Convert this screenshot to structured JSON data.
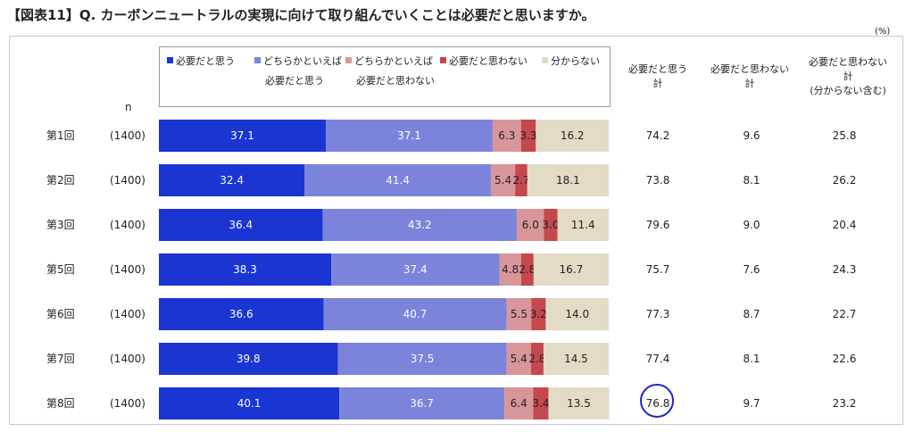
{
  "title": "【図表11】Q. カーボンニュートラルの実現に向けて取り組んでいくことは必要だと思いますか。",
  "unit": "(%)",
  "n_label": "n",
  "legend": [
    {
      "label1": "必要だと思う",
      "label2": "",
      "color": "#1a35d2"
    },
    {
      "label1": "どちらかといえば",
      "label2": "必要だと思う",
      "color": "#7b83da"
    },
    {
      "label1": "どちらかといえば",
      "label2": "必要だと思わない",
      "color": "#d9969a"
    },
    {
      "label1": "必要だと思わない",
      "label2": "",
      "color": "#c4484c"
    },
    {
      "label1": "分からない",
      "label2": "",
      "color": "#e2dcc7"
    }
  ],
  "columns": [
    "必要だと思う\n計",
    "必要だと思わない\n計",
    "必要だと思わない\n計\n(分からない含む)"
  ],
  "highlight": {
    "row": 6,
    "column": 0
  },
  "chart_data": {
    "type": "bar",
    "stacked": true,
    "orientation": "horizontal",
    "categories": [
      "第1回",
      "第2回",
      "第3回",
      "第5回",
      "第6回",
      "第7回",
      "第8回"
    ],
    "n": [
      "(1400)",
      "(1400)",
      "(1400)",
      "(1400)",
      "(1400)",
      "(1400)",
      "(1400)"
    ],
    "series": [
      {
        "name": "必要だと思う",
        "values": [
          37.1,
          32.4,
          36.4,
          38.3,
          36.6,
          39.8,
          40.1
        ]
      },
      {
        "name": "どちらかといえば必要だと思う",
        "values": [
          37.1,
          41.4,
          43.2,
          37.4,
          40.7,
          37.5,
          36.7
        ]
      },
      {
        "name": "どちらかといえば必要だと思わない",
        "values": [
          6.3,
          5.4,
          6.0,
          4.8,
          5.5,
          5.4,
          6.4
        ]
      },
      {
        "name": "必要だと思わない",
        "values": [
          3.3,
          2.7,
          3.0,
          2.8,
          3.2,
          2.8,
          3.4
        ]
      },
      {
        "name": "分からない",
        "values": [
          16.2,
          18.1,
          11.4,
          16.7,
          14.0,
          14.5,
          13.5
        ]
      }
    ],
    "summary": [
      {
        "name": "必要だと思う計",
        "values": [
          "74.2",
          "73.8",
          "79.6",
          "75.7",
          "77.3",
          "77.4",
          "76.8"
        ]
      },
      {
        "name": "必要だと思わない計",
        "values": [
          "9.6",
          "8.1",
          "9.0",
          "7.6",
          "8.7",
          "8.1",
          "9.7"
        ]
      },
      {
        "name": "必要だと思わない計(分からない含む)",
        "values": [
          "25.8",
          "26.2",
          "20.4",
          "24.3",
          "22.7",
          "22.6",
          "23.2"
        ]
      }
    ],
    "xlim": [
      0,
      100
    ]
  }
}
